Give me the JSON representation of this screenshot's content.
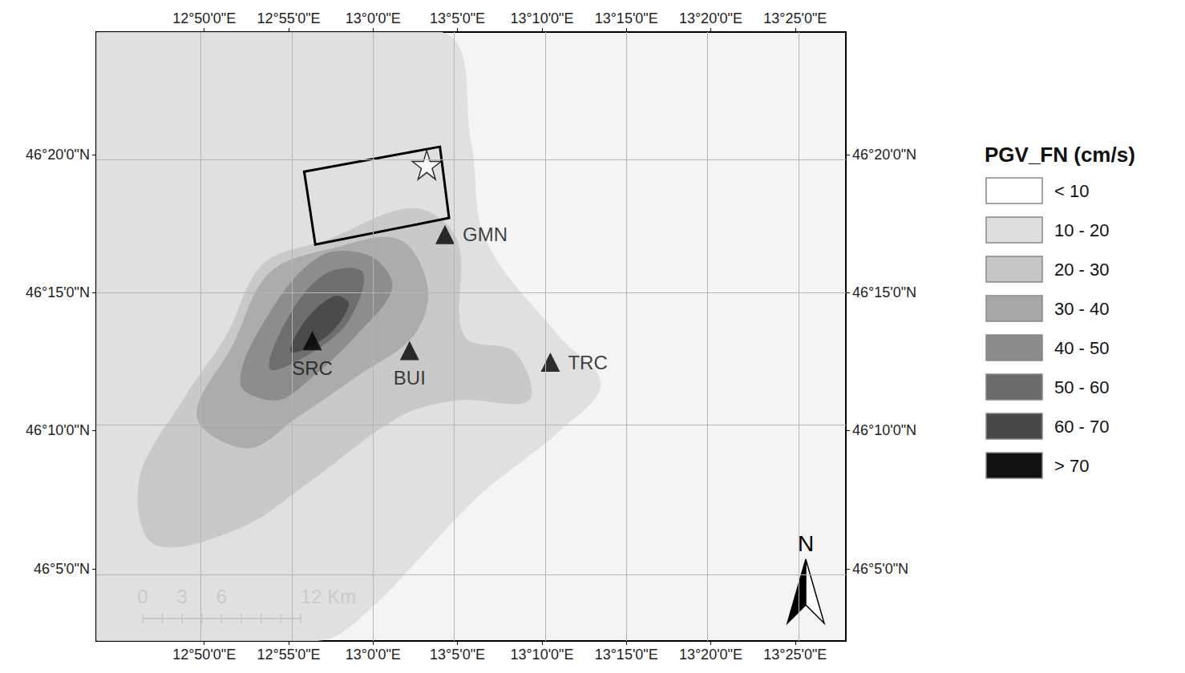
{
  "chart_data": {
    "type": "map",
    "xlim": [
      12.7267,
      13.4667
    ],
    "ylim": [
      46.0398,
      46.4072
    ],
    "xticks": [
      {
        "value": 12.8333,
        "label": "12°50'0\"E"
      },
      {
        "value": 12.9167,
        "label": "12°55'0\"E"
      },
      {
        "value": 13.0,
        "label": "13°0'0\"E"
      },
      {
        "value": 13.0833,
        "label": "13°5'0\"E"
      },
      {
        "value": 13.1667,
        "label": "13°10'0\"E"
      },
      {
        "value": 13.25,
        "label": "13°15'0\"E"
      },
      {
        "value": 13.3333,
        "label": "13°20'0\"E"
      },
      {
        "value": 13.4167,
        "label": "13°25'0\"E"
      }
    ],
    "yticks": [
      {
        "value": 46.0833,
        "label": "46°5'0\"N"
      },
      {
        "value": 46.1667,
        "label": "46°10'0\"N"
      },
      {
        "value": 46.25,
        "label": "46°15'0\"N"
      },
      {
        "value": 46.3333,
        "label": "46°20'0\"N"
      }
    ],
    "grid": true,
    "legend_title": "PGV_FN (cm/s)",
    "classes": [
      {
        "label": "< 10",
        "color": "#ffffff"
      },
      {
        "label": "10 - 20",
        "color": "#dedede",
        "polygon": [
          [
            12.727,
            46.407
          ],
          [
            13.069,
            46.407
          ],
          [
            13.097,
            46.34
          ],
          [
            13.111,
            46.282
          ],
          [
            13.183,
            46.224
          ],
          [
            13.225,
            46.195
          ],
          [
            13.183,
            46.166
          ],
          [
            13.104,
            46.127
          ],
          [
            12.997,
            46.059
          ],
          [
            12.948,
            46.04
          ],
          [
            12.727,
            46.04
          ]
        ]
      },
      {
        "label": "20 - 30",
        "color": "#c6c6c6",
        "polygon": [
          [
            12.769,
            46.137
          ],
          [
            12.812,
            46.185
          ],
          [
            12.855,
            46.224
          ],
          [
            12.891,
            46.267
          ],
          [
            12.955,
            46.282
          ],
          [
            13.04,
            46.301
          ],
          [
            13.083,
            46.282
          ],
          [
            13.09,
            46.224
          ],
          [
            13.14,
            46.214
          ],
          [
            13.154,
            46.185
          ],
          [
            13.083,
            46.185
          ],
          [
            13.026,
            46.175
          ],
          [
            12.94,
            46.137
          ],
          [
            12.869,
            46.108
          ],
          [
            12.784,
            46.098
          ]
        ]
      },
      {
        "label": "30 - 40",
        "color": "#a8a8a8",
        "polygon": [
          [
            12.826,
            46.175
          ],
          [
            12.862,
            46.219
          ],
          [
            12.898,
            46.262
          ],
          [
            12.962,
            46.277
          ],
          [
            13.026,
            46.282
          ],
          [
            13.054,
            46.253
          ],
          [
            13.04,
            46.224
          ],
          [
            12.983,
            46.199
          ],
          [
            12.926,
            46.175
          ],
          [
            12.876,
            46.156
          ]
        ]
      },
      {
        "label": "40 - 50",
        "color": "#8a8a8a",
        "polygon": [
          [
            12.869,
            46.195
          ],
          [
            12.898,
            46.238
          ],
          [
            12.948,
            46.272
          ],
          [
            12.997,
            46.272
          ],
          [
            13.019,
            46.253
          ],
          [
            12.983,
            46.224
          ],
          [
            12.94,
            46.199
          ],
          [
            12.905,
            46.185
          ]
        ]
      },
      {
        "label": "50 - 60",
        "color": "#6a6a6a",
        "polygon": [
          [
            12.898,
            46.204
          ],
          [
            12.919,
            46.238
          ],
          [
            12.955,
            46.262
          ],
          [
            12.99,
            46.262
          ],
          [
            12.976,
            46.233
          ],
          [
            12.94,
            46.214
          ]
        ]
      },
      {
        "label": "60 - 70",
        "color": "#474747",
        "polygon": [
          [
            12.919,
            46.214
          ],
          [
            12.933,
            46.233
          ],
          [
            12.962,
            46.248
          ],
          [
            12.976,
            46.243
          ],
          [
            12.955,
            46.224
          ]
        ]
      },
      {
        "label": "> 70",
        "color": "#111111"
      }
    ],
    "stations": [
      {
        "name": "GMN",
        "lon": 13.071,
        "lat": 46.285
      },
      {
        "name": "SRC",
        "lon": 12.94,
        "lat": 46.221
      },
      {
        "name": "BUI",
        "lon": 13.036,
        "lat": 46.215
      },
      {
        "name": "TRC",
        "lon": 13.175,
        "lat": 46.208
      }
    ],
    "fault_outline": [
      [
        12.932,
        46.323
      ],
      [
        13.066,
        46.338
      ],
      [
        13.075,
        46.295
      ],
      [
        12.943,
        46.279
      ]
    ],
    "epicenter": [
      13.053,
      46.327
    ],
    "scale_bar": {
      "ticks": [
        0,
        3,
        6,
        {
          "value": 12,
          "label": "12 Km"
        }
      ]
    },
    "north_label": "N"
  }
}
